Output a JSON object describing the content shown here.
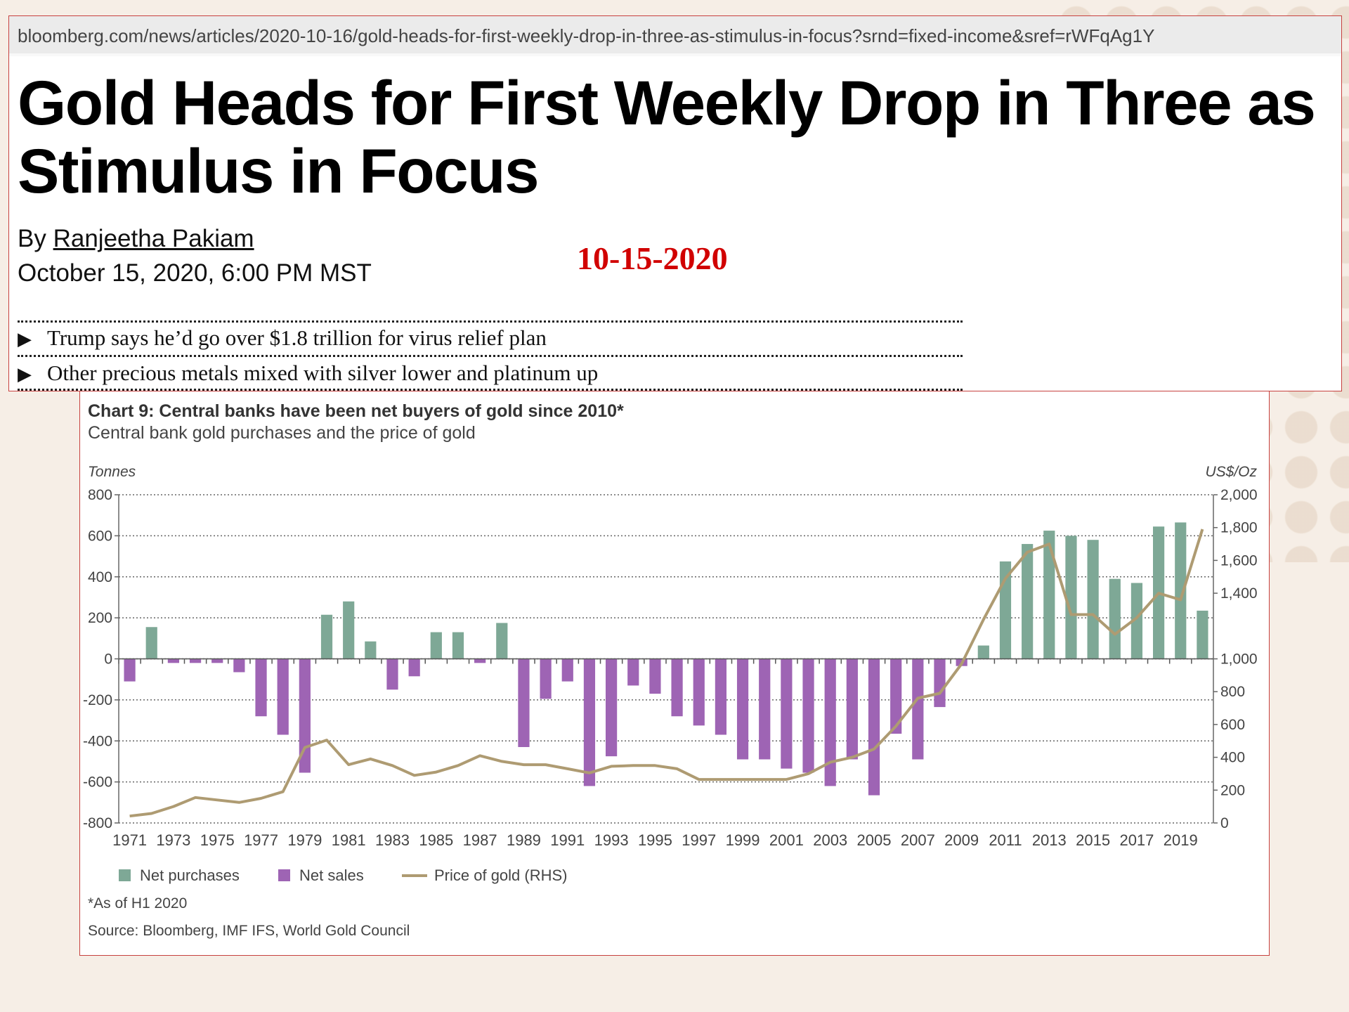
{
  "article": {
    "url": "bloomberg.com/news/articles/2020-10-16/gold-heads-for-first-weekly-drop-in-three-as-stimulus-in-focus?srnd=fixed-income&sref=rWFqAg1Y",
    "headline": "Gold Heads for First Weekly Drop in Three as Stimulus in Focus",
    "byline_prefix": "By",
    "author": "Ranjeetha Pakiam",
    "date": "October 15, 2020, 6:00 PM MST",
    "stamp": "10-15-2020",
    "bullets": [
      "Trump says he’d go over $1.8 trillion for virus relief plan",
      "Other precious metals mixed with silver lower and platinum up"
    ],
    "bullet_icon": "play-triangle-icon"
  },
  "chart_data": {
    "type": "bar",
    "title": "Chart 9: Central banks have been net buyers of gold since 2010*",
    "subtitle": "Central bank gold purchases and the price of gold",
    "ylabel_left": "Tonnes",
    "ylabel_right": "US$/Oz",
    "ylim_left": [
      -800,
      800
    ],
    "ylim_right": [
      0,
      2000
    ],
    "yticks_left": [
      800,
      600,
      400,
      200,
      0,
      -200,
      -400,
      -600,
      -800
    ],
    "yticks_right": [
      {
        "v": 2000,
        "label": "2,000"
      },
      {
        "v": 1800,
        "label": "1,800"
      },
      {
        "v": 1600,
        "label": "1,600"
      },
      {
        "v": 1400,
        "label": "1,400"
      },
      {
        "v": 1000,
        "label": "1,000"
      },
      {
        "v": 800,
        "label": "800"
      },
      {
        "v": 600,
        "label": "600"
      },
      {
        "v": 400,
        "label": "400"
      },
      {
        "v": 200,
        "label": "200"
      },
      {
        "v": 0,
        "label": "0"
      }
    ],
    "xtick_labels": [
      "1971",
      "1973",
      "1975",
      "1977",
      "1979",
      "1981",
      "1983",
      "1985",
      "1987",
      "1989",
      "1991",
      "1993",
      "1995",
      "1997",
      "1999",
      "2001",
      "2003",
      "2005",
      "2007",
      "2009",
      "2011",
      "2013",
      "2015",
      "2017",
      "2019"
    ],
    "years": [
      1971,
      1972,
      1973,
      1974,
      1975,
      1976,
      1977,
      1978,
      1979,
      1980,
      1981,
      1982,
      1983,
      1984,
      1985,
      1986,
      1987,
      1988,
      1989,
      1990,
      1991,
      1992,
      1993,
      1994,
      1995,
      1996,
      1997,
      1998,
      1999,
      2000,
      2001,
      2002,
      2003,
      2004,
      2005,
      2006,
      2007,
      2008,
      2009,
      2010,
      2011,
      2012,
      2013,
      2014,
      2015,
      2016,
      2017,
      2018,
      2019,
      2020
    ],
    "net_flows": [
      -110,
      155,
      -20,
      -20,
      -20,
      -65,
      -280,
      -370,
      -555,
      215,
      280,
      85,
      -150,
      -85,
      130,
      130,
      -20,
      175,
      -430,
      -195,
      -110,
      -620,
      -475,
      -130,
      -170,
      -280,
      -325,
      -370,
      -490,
      -490,
      -535,
      -555,
      -620,
      -490,
      -665,
      -365,
      -490,
      -235,
      -35,
      65,
      475,
      560,
      625,
      600,
      580,
      390,
      370,
      645,
      665,
      235
    ],
    "gold_price": [
      42,
      58,
      100,
      155,
      140,
      125,
      150,
      190,
      460,
      505,
      355,
      390,
      350,
      290,
      310,
      350,
      410,
      375,
      355,
      355,
      330,
      305,
      345,
      350,
      350,
      330,
      265,
      265,
      265,
      265,
      265,
      300,
      370,
      400,
      450,
      590,
      760,
      790,
      970,
      1240,
      1490,
      1650,
      1700,
      1270,
      1270,
      1150,
      1250,
      1400,
      1360,
      1790
    ],
    "series": [
      {
        "name": "Net purchases",
        "color": "#7ea896"
      },
      {
        "name": "Net sales",
        "color": "#9e64b4"
      },
      {
        "name": "Price of gold (RHS)",
        "color": "#ae9b72"
      }
    ],
    "footnote": "*As of H1 2020",
    "source": "Source: Bloomberg, IMF IFS, World Gold Council",
    "grid": true,
    "legend_position": "bottom-left"
  }
}
